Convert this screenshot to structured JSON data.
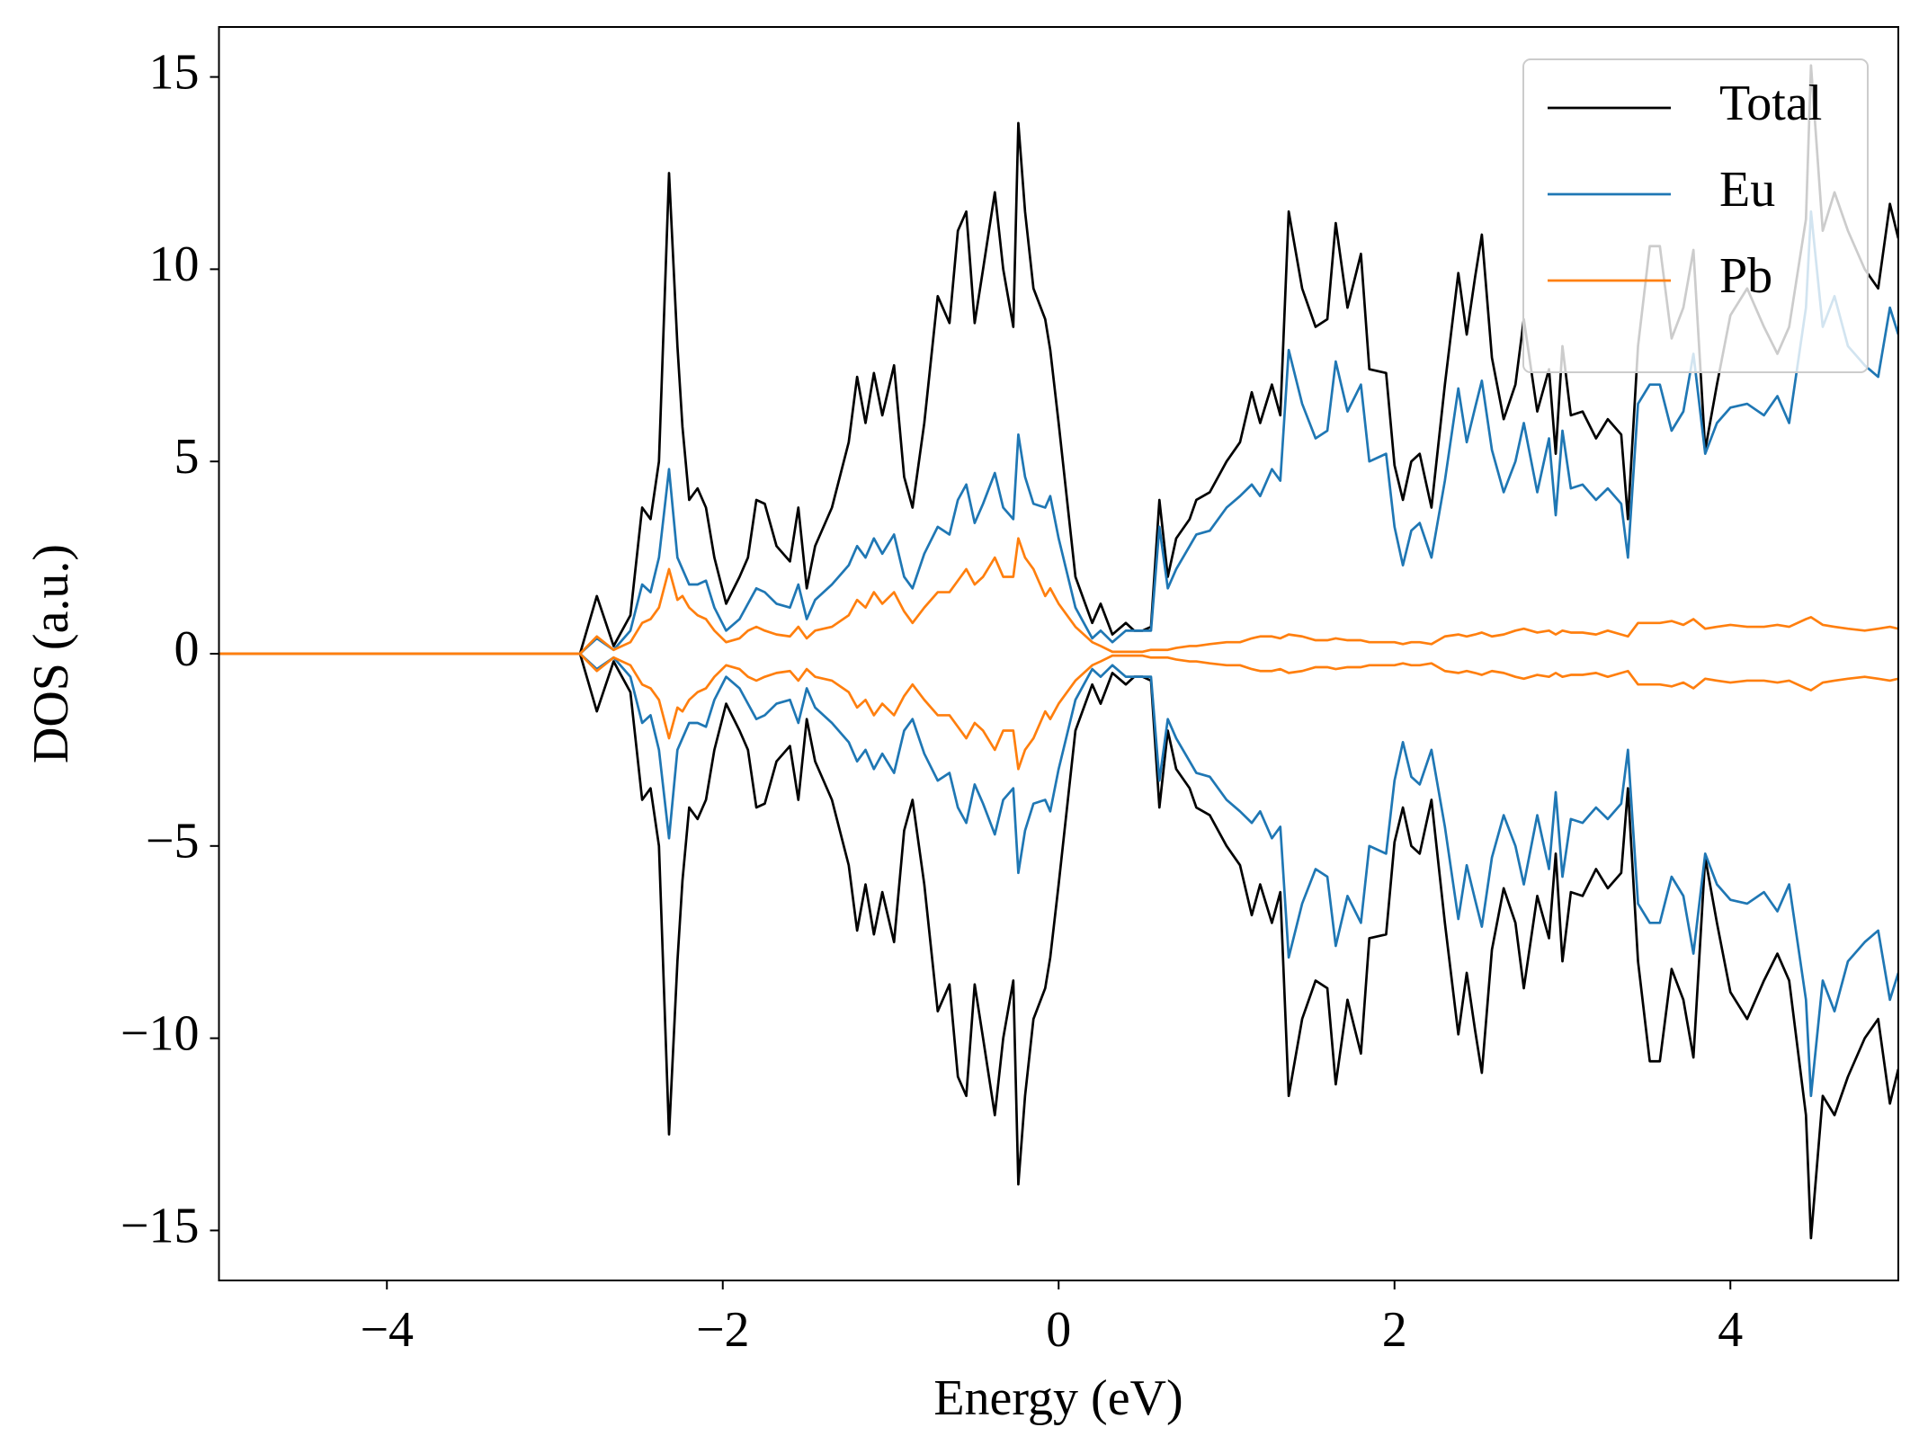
{
  "chart_data": {
    "type": "line",
    "xlabel": "Energy (eV)",
    "ylabel": "DOS (a.u.)",
    "xlim": [
      -5,
      5
    ],
    "ylim": [
      -16.3,
      16.3
    ],
    "xticks": [
      {
        "value": -4,
        "label": "−4"
      },
      {
        "value": -2,
        "label": "−2"
      },
      0,
      2,
      4
    ],
    "yticks": [
      {
        "value": -15,
        "label": "−15"
      },
      {
        "value": -10,
        "label": "−10"
      },
      {
        "value": -5,
        "label": "−5"
      },
      0,
      5,
      10,
      15
    ],
    "legend": "upper right",
    "x": [
      -5,
      -2.85,
      -2.75,
      -2.65,
      -2.55,
      -2.48,
      -2.43,
      -2.38,
      -2.32,
      -2.27,
      -2.24,
      -2.2,
      -2.15,
      -2.1,
      -2.05,
      -1.98,
      -1.9,
      -1.85,
      -1.8,
      -1.75,
      -1.68,
      -1.6,
      -1.55,
      -1.5,
      -1.45,
      -1.35,
      -1.25,
      -1.2,
      -1.15,
      -1.1,
      -1.05,
      -0.98,
      -0.92,
      -0.87,
      -0.8,
      -0.72,
      -0.65,
      -0.6,
      -0.55,
      -0.5,
      -0.45,
      -0.38,
      -0.33,
      -0.27,
      -0.24,
      -0.2,
      -0.15,
      -0.08,
      -0.05,
      0,
      0.1,
      0.2,
      0.25,
      0.32,
      0.4,
      0.45,
      0.5,
      0.55,
      0.6,
      0.65,
      0.7,
      0.78,
      0.82,
      0.9,
      1.0,
      1.08,
      1.15,
      1.2,
      1.27,
      1.32,
      1.37,
      1.45,
      1.53,
      1.6,
      1.65,
      1.72,
      1.8,
      1.85,
      1.95,
      2.0,
      2.05,
      2.1,
      2.15,
      2.22,
      2.3,
      2.38,
      2.43,
      2.48,
      2.52,
      2.58,
      2.65,
      2.72,
      2.77,
      2.85,
      2.92,
      2.96,
      3.0,
      3.05,
      3.12,
      3.2,
      3.27,
      3.35,
      3.39,
      3.45,
      3.52,
      3.58,
      3.65,
      3.72,
      3.78,
      3.85,
      3.92,
      4.0,
      4.1,
      4.2,
      4.28,
      4.35,
      4.45,
      4.48,
      4.55,
      4.62,
      4.7,
      4.8,
      4.88,
      4.95,
      5.0
    ],
    "series": [
      {
        "name": "Total",
        "color": "#000000",
        "values": [
          0,
          0,
          1.5,
          0.2,
          1,
          3.8,
          3.5,
          5,
          12.5,
          8,
          5.9,
          4,
          4.3,
          3.8,
          2.5,
          1.3,
          2,
          2.5,
          4,
          3.9,
          2.8,
          2.4,
          3.8,
          1.7,
          2.8,
          3.8,
          5.5,
          7.2,
          6,
          7.3,
          6.2,
          7.5,
          4.6,
          3.8,
          6,
          9.3,
          8.6,
          11,
          11.5,
          8.6,
          10,
          12,
          10,
          8.5,
          13.8,
          11.5,
          9.5,
          8.7,
          7.9,
          6,
          2,
          0.8,
          1.3,
          0.5,
          0.8,
          0.6,
          0.6,
          0.7,
          4,
          2,
          3,
          3.5,
          4,
          4.2,
          5,
          5.5,
          6.8,
          6,
          7,
          6.2,
          11.5,
          9.5,
          8.5,
          8.7,
          11.2,
          9,
          10.4,
          7.4,
          7.3,
          4.9,
          4,
          5,
          5.2,
          3.8,
          7,
          9.9,
          8.3,
          9.8,
          10.9,
          7.7,
          6.1,
          7,
          8.7,
          6.3,
          7.4,
          5.2,
          8,
          6.2,
          6.3,
          5.6,
          6.1,
          5.7,
          3.5,
          8,
          10.6,
          10.6,
          8.2,
          9,
          10.5,
          5.3,
          7,
          8.8,
          9.5,
          8.5,
          7.8,
          8.5,
          11.3,
          15.3,
          11,
          12,
          11,
          10,
          9.5,
          11.7,
          10.8
        ]
      },
      {
        "name": "Total",
        "color": "#000000",
        "values": [
          0,
          0,
          -1.5,
          -0.2,
          -1,
          -3.8,
          -3.5,
          -5,
          -12.5,
          -8,
          -5.9,
          -4,
          -4.3,
          -3.8,
          -2.5,
          -1.3,
          -2,
          -2.5,
          -4,
          -3.9,
          -2.8,
          -2.4,
          -3.8,
          -1.7,
          -2.8,
          -3.8,
          -5.5,
          -7.2,
          -6,
          -7.3,
          -6.2,
          -7.5,
          -4.6,
          -3.8,
          -6,
          -9.3,
          -8.6,
          -11,
          -11.5,
          -8.6,
          -10,
          -12,
          -10,
          -8.5,
          -13.8,
          -11.5,
          -9.5,
          -8.7,
          -7.9,
          -6,
          -2,
          -0.8,
          -1.3,
          -0.5,
          -0.8,
          -0.6,
          -0.6,
          -0.7,
          -4,
          -2,
          -3,
          -3.5,
          -4,
          -4.2,
          -5,
          -5.5,
          -6.8,
          -6,
          -7,
          -6.2,
          -11.5,
          -9.5,
          -8.5,
          -8.7,
          -11.2,
          -9,
          -10.4,
          -7.4,
          -7.3,
          -4.9,
          -4,
          -5,
          -5.2,
          -3.8,
          -7,
          -9.9,
          -8.3,
          -9.8,
          -10.9,
          -7.7,
          -6.1,
          -7,
          -8.7,
          -6.3,
          -7.4,
          -5.2,
          -8,
          -6.2,
          -6.3,
          -5.6,
          -6.1,
          -5.7,
          -3.5,
          -8,
          -10.6,
          -10.6,
          -8.2,
          -9,
          -10.5,
          -5.3,
          -7,
          -8.8,
          -9.5,
          -8.5,
          -7.8,
          -8.5,
          -12,
          -15.2,
          -11.5,
          -12,
          -11,
          -10,
          -9.5,
          -11.7,
          -10.8
        ]
      },
      {
        "name": "Eu",
        "color": "#1f77b4",
        "values": [
          0,
          0,
          0.4,
          0.1,
          0.6,
          1.8,
          1.6,
          2.5,
          4.8,
          2.5,
          2.2,
          1.8,
          1.8,
          1.9,
          1.2,
          0.6,
          0.9,
          1.3,
          1.7,
          1.6,
          1.3,
          1.2,
          1.8,
          0.9,
          1.4,
          1.8,
          2.3,
          2.8,
          2.5,
          3,
          2.6,
          3.1,
          2,
          1.7,
          2.6,
          3.3,
          3.1,
          4,
          4.4,
          3.4,
          3.9,
          4.7,
          3.8,
          3.5,
          5.7,
          4.6,
          3.9,
          3.8,
          4.1,
          3,
          1.2,
          0.4,
          0.6,
          0.3,
          0.6,
          0.6,
          0.6,
          0.6,
          3.3,
          1.7,
          2.2,
          2.8,
          3.1,
          3.2,
          3.8,
          4.1,
          4.4,
          4.1,
          4.8,
          4.5,
          7.9,
          6.5,
          5.6,
          5.8,
          7.6,
          6.3,
          7,
          5,
          5.2,
          3.3,
          2.3,
          3.2,
          3.4,
          2.5,
          4.5,
          6.9,
          5.5,
          6.4,
          7.1,
          5.3,
          4.2,
          5,
          6,
          4.2,
          5.6,
          3.6,
          5.8,
          4.3,
          4.4,
          4,
          4.3,
          3.9,
          2.5,
          6.5,
          7,
          7,
          5.8,
          6.3,
          7.8,
          5.2,
          6,
          6.4,
          6.5,
          6.2,
          6.7,
          6,
          9,
          11.5,
          8.5,
          9.3,
          8,
          7.5,
          7.2,
          9,
          8.3
        ]
      },
      {
        "name": "Eu",
        "color": "#1f77b4",
        "values": [
          0,
          0,
          -0.4,
          -0.1,
          -0.6,
          -1.8,
          -1.6,
          -2.5,
          -4.8,
          -2.5,
          -2.2,
          -1.8,
          -1.8,
          -1.9,
          -1.2,
          -0.6,
          -0.9,
          -1.3,
          -1.7,
          -1.6,
          -1.3,
          -1.2,
          -1.8,
          -0.9,
          -1.4,
          -1.8,
          -2.3,
          -2.8,
          -2.5,
          -3,
          -2.6,
          -3.1,
          -2,
          -1.7,
          -2.6,
          -3.3,
          -3.1,
          -4,
          -4.4,
          -3.4,
          -3.9,
          -4.7,
          -3.8,
          -3.5,
          -5.7,
          -4.6,
          -3.9,
          -3.8,
          -4.1,
          -3,
          -1.2,
          -0.4,
          -0.6,
          -0.3,
          -0.6,
          -0.6,
          -0.6,
          -0.6,
          -3.3,
          -1.7,
          -2.2,
          -2.8,
          -3.1,
          -3.2,
          -3.8,
          -4.1,
          -4.4,
          -4.1,
          -4.8,
          -4.5,
          -7.9,
          -6.5,
          -5.6,
          -5.8,
          -7.6,
          -6.3,
          -7,
          -5,
          -5.2,
          -3.3,
          -2.3,
          -3.2,
          -3.4,
          -2.5,
          -4.5,
          -6.9,
          -5.5,
          -6.4,
          -7.1,
          -5.3,
          -4.2,
          -5,
          -6,
          -4.2,
          -5.6,
          -3.6,
          -5.8,
          -4.3,
          -4.4,
          -4,
          -4.3,
          -3.9,
          -2.5,
          -6.5,
          -7,
          -7,
          -5.8,
          -6.3,
          -7.8,
          -5.2,
          -6,
          -6.4,
          -6.5,
          -6.2,
          -6.7,
          -6,
          -9,
          -11.5,
          -8.5,
          -9.3,
          -8,
          -7.5,
          -7.2,
          -9,
          -8.3
        ]
      },
      {
        "name": "Pb",
        "color": "#ff7f0e",
        "values": [
          0,
          0,
          0.45,
          0.1,
          0.3,
          0.8,
          0.9,
          1.2,
          2.2,
          1.4,
          1.5,
          1.2,
          1,
          0.9,
          0.6,
          0.3,
          0.4,
          0.6,
          0.7,
          0.6,
          0.5,
          0.45,
          0.7,
          0.4,
          0.6,
          0.7,
          1,
          1.4,
          1.2,
          1.6,
          1.3,
          1.6,
          1.1,
          0.8,
          1.2,
          1.6,
          1.6,
          1.9,
          2.2,
          1.8,
          2,
          2.5,
          2,
          2,
          3,
          2.5,
          2.2,
          1.5,
          1.7,
          1.3,
          0.7,
          0.3,
          0.2,
          0.05,
          0.05,
          0.05,
          0.05,
          0.1,
          0.1,
          0.1,
          0.15,
          0.2,
          0.2,
          0.25,
          0.3,
          0.3,
          0.4,
          0.45,
          0.45,
          0.4,
          0.5,
          0.45,
          0.35,
          0.35,
          0.4,
          0.35,
          0.35,
          0.3,
          0.3,
          0.3,
          0.25,
          0.3,
          0.3,
          0.25,
          0.45,
          0.5,
          0.45,
          0.5,
          0.55,
          0.45,
          0.5,
          0.6,
          0.65,
          0.55,
          0.6,
          0.5,
          0.6,
          0.55,
          0.55,
          0.5,
          0.6,
          0.5,
          0.45,
          0.8,
          0.8,
          0.8,
          0.85,
          0.75,
          0.9,
          0.65,
          0.7,
          0.75,
          0.7,
          0.7,
          0.75,
          0.7,
          0.9,
          0.95,
          0.75,
          0.7,
          0.65,
          0.6,
          0.65,
          0.7,
          0.65
        ]
      },
      {
        "name": "Pb",
        "color": "#ff7f0e",
        "values": [
          0,
          0,
          -0.45,
          -0.1,
          -0.3,
          -0.8,
          -0.9,
          -1.2,
          -2.2,
          -1.4,
          -1.5,
          -1.2,
          -1,
          -0.9,
          -0.6,
          -0.3,
          -0.4,
          -0.6,
          -0.7,
          -0.6,
          -0.5,
          -0.45,
          -0.7,
          -0.4,
          -0.6,
          -0.7,
          -1,
          -1.4,
          -1.2,
          -1.6,
          -1.3,
          -1.6,
          -1.1,
          -0.8,
          -1.2,
          -1.6,
          -1.6,
          -1.9,
          -2.2,
          -1.8,
          -2,
          -2.5,
          -2,
          -2,
          -3,
          -2.5,
          -2.2,
          -1.5,
          -1.7,
          -1.3,
          -0.7,
          -0.3,
          -0.2,
          -0.05,
          -0.05,
          -0.05,
          -0.05,
          -0.1,
          -0.1,
          -0.1,
          -0.15,
          -0.2,
          -0.2,
          -0.25,
          -0.3,
          -0.3,
          -0.4,
          -0.45,
          -0.45,
          -0.4,
          -0.5,
          -0.45,
          -0.35,
          -0.35,
          -0.4,
          -0.35,
          -0.35,
          -0.3,
          -0.3,
          -0.3,
          -0.25,
          -0.3,
          -0.3,
          -0.25,
          -0.45,
          -0.5,
          -0.45,
          -0.5,
          -0.55,
          -0.45,
          -0.5,
          -0.6,
          -0.65,
          -0.55,
          -0.6,
          -0.5,
          -0.6,
          -0.55,
          -0.55,
          -0.5,
          -0.6,
          -0.5,
          -0.45,
          -0.8,
          -0.8,
          -0.8,
          -0.85,
          -0.75,
          -0.9,
          -0.65,
          -0.7,
          -0.75,
          -0.7,
          -0.7,
          -0.75,
          -0.7,
          -0.9,
          -0.95,
          -0.75,
          -0.7,
          -0.65,
          -0.6,
          -0.65,
          -0.7,
          -0.65
        ]
      }
    ]
  }
}
